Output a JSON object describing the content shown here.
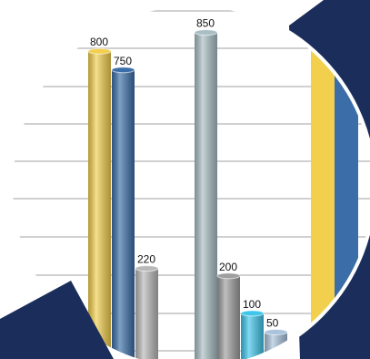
{
  "chart_data": {
    "type": "bar",
    "values": [
      800,
      750,
      220,
      850,
      200,
      100,
      50
    ],
    "colors": [
      "#f3cf4e",
      "#3b6ea8",
      "#b8b8b8",
      "#a9bfc4",
      "#9e9e9e",
      "#3fc6ea",
      "#a9c3dc"
    ]
  }
}
